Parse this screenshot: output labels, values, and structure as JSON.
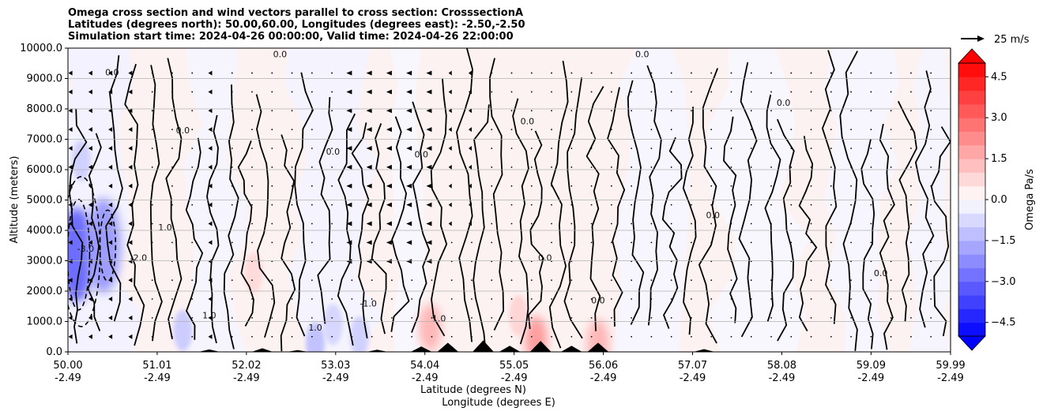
{
  "title": {
    "line1": "Omega cross section and wind vectors parallel to cross section: CrosssectionA",
    "line2": "Latitudes (degrees north): 50.00,60.00, Longitudes (degrees east): -2.50,-2.50",
    "line3": "Simulation start time: 2024-04-26 00:00:00, Valid time: 2024-04-26 22:00:00"
  },
  "chart_data": {
    "type": "heatmap",
    "subtype": "cross-section filled contour with wind vectors",
    "xlabel_line1": "Latitude (degrees N)",
    "xlabel_line2": "Longitude (degrees E)",
    "ylabel": "Altitude (meters)",
    "x_ticks": [
      {
        "lat": "50.00",
        "lon": "-2.49"
      },
      {
        "lat": "51.01",
        "lon": "-2.49"
      },
      {
        "lat": "52.02",
        "lon": "-2.49"
      },
      {
        "lat": "53.03",
        "lon": "-2.49"
      },
      {
        "lat": "54.04",
        "lon": "-2.49"
      },
      {
        "lat": "55.05",
        "lon": "-2.49"
      },
      {
        "lat": "56.06",
        "lon": "-2.49"
      },
      {
        "lat": "57.07",
        "lon": "-2.49"
      },
      {
        "lat": "58.08",
        "lon": "-2.49"
      },
      {
        "lat": "59.09",
        "lon": "-2.49"
      },
      {
        "lat": "59.99",
        "lon": "-2.49"
      }
    ],
    "x_range": [
      50.0,
      59.99
    ],
    "y_ticks": [
      "0.0",
      "1000.0",
      "2000.0",
      "3000.0",
      "4000.0",
      "5000.0",
      "6000.0",
      "7000.0",
      "8000.0",
      "9000.0",
      "10000.0"
    ],
    "y_range": [
      0,
      10000
    ],
    "grid": "horizontal",
    "colorbar": {
      "label": "Omega Pa/s",
      "ticks": [
        "4.5",
        "3.0",
        "1.5",
        "0.0",
        "−1.5",
        "−3.0",
        "−4.5"
      ],
      "range": [
        -5.0,
        5.0
      ],
      "extend": "both",
      "negative_color": "#0000ff",
      "positive_color": "#ff0000"
    },
    "quiver_key": {
      "label": "25 m/s"
    },
    "contour_labels": [
      "0.0",
      "1.0",
      "-1.0",
      "-2.0",
      "-3.0"
    ],
    "features": [
      {
        "name": "strong ascent",
        "lat": 50.1,
        "alt_m": 3200,
        "omega": -3.0
      },
      {
        "name": "ascent",
        "lat": 50.4,
        "alt_m": 3500,
        "omega": -2.0
      },
      {
        "name": "descent near surface",
        "lat": 54.1,
        "alt_m": 800,
        "omega": 1.5
      },
      {
        "name": "descent near surface",
        "lat": 55.3,
        "alt_m": 400,
        "omega": 2.0
      },
      {
        "name": "descent near surface",
        "lat": 56.0,
        "alt_m": 300,
        "omega": 1.5
      }
    ],
    "terrain_m": [
      {
        "lat": 51.6,
        "h": 80
      },
      {
        "lat": 52.2,
        "h": 120
      },
      {
        "lat": 52.6,
        "h": 60
      },
      {
        "lat": 53.5,
        "h": 70
      },
      {
        "lat": 54.0,
        "h": 180
      },
      {
        "lat": 54.3,
        "h": 300
      },
      {
        "lat": 54.7,
        "h": 380
      },
      {
        "lat": 55.0,
        "h": 200
      },
      {
        "lat": 55.35,
        "h": 360
      },
      {
        "lat": 55.7,
        "h": 200
      },
      {
        "lat": 56.0,
        "h": 300
      },
      {
        "lat": 57.2,
        "h": 90
      }
    ]
  }
}
